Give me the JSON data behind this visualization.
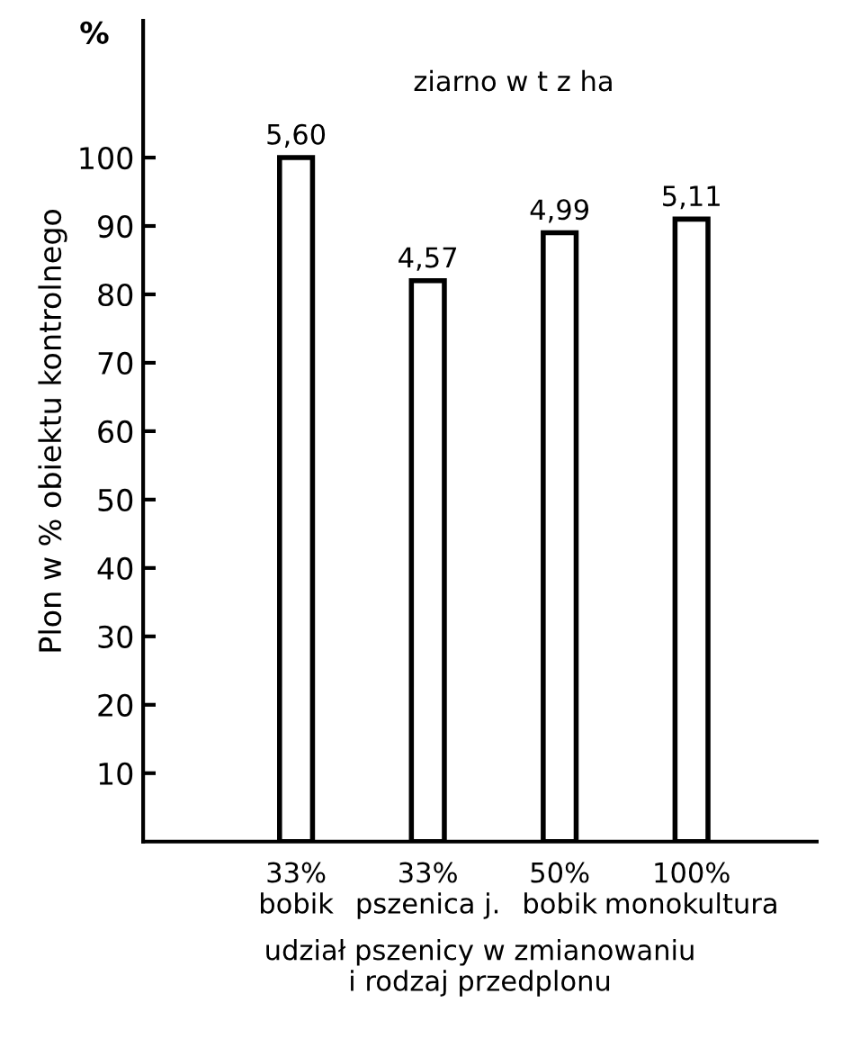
{
  "chart_data": {
    "type": "bar",
    "title": "ziarno w t z ha",
    "ylabel": "Plon w % obiektu kontrolnego",
    "xlabel": "udział pszenicy w zmianowaniu\ni rodzaj przedplonu",
    "annotations": [
      "%"
    ],
    "categories": [
      "33%\nbobik",
      "33%\npszenica j.",
      "50%\nbobik",
      "100%\nmonokultura"
    ],
    "series": [
      {
        "color": "#ffffff",
        "values": [
          100,
          82,
          89,
          91
        ]
      }
    ],
    "value_labels": [
      "5,60",
      "4,57",
      "4,99",
      "5,11"
    ],
    "ylim": [
      0,
      120
    ],
    "yticks": [
      10,
      20,
      30,
      40,
      50,
      60,
      70,
      80,
      90,
      100
    ],
    "grid": false,
    "legend": false
  }
}
